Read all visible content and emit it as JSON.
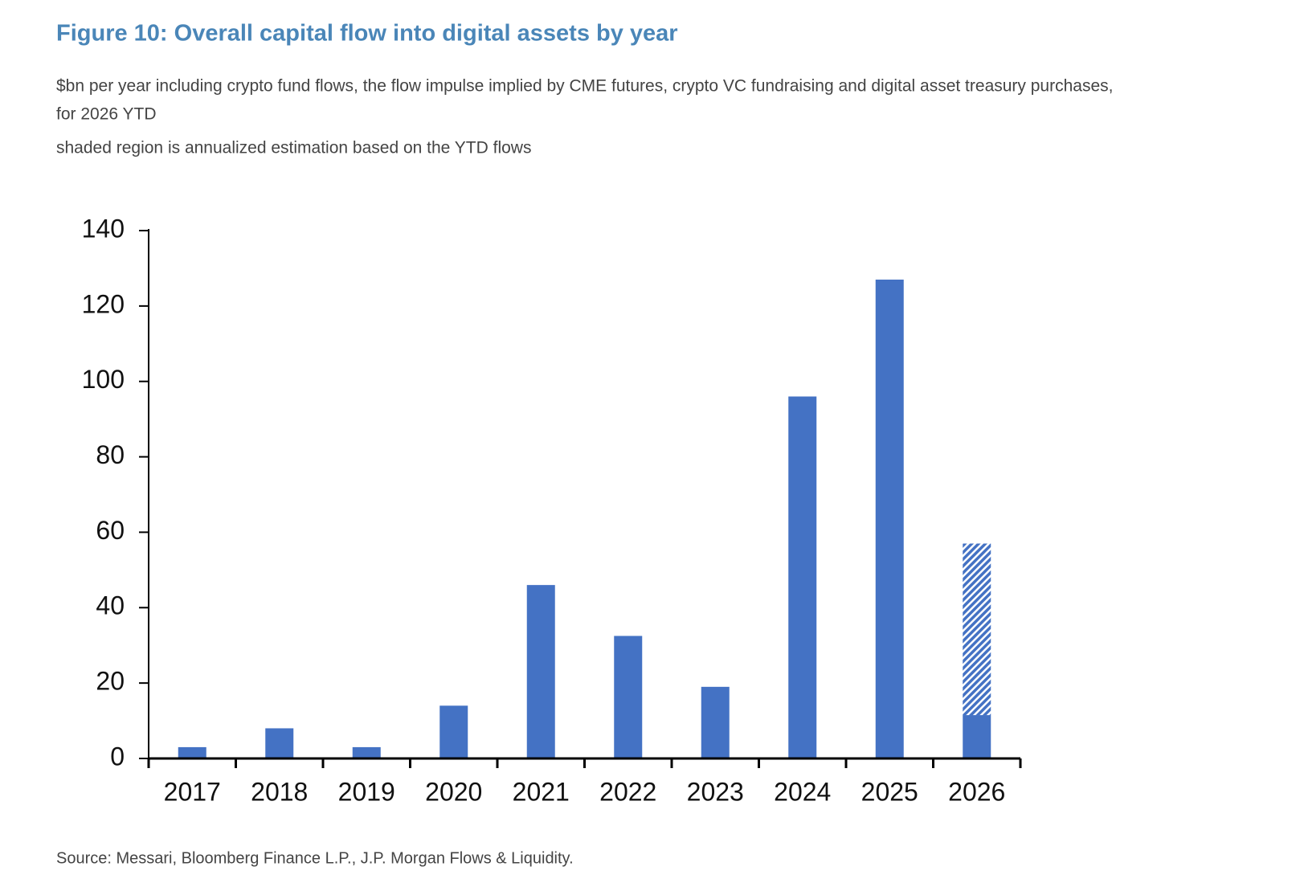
{
  "chart_data": {
    "type": "bar",
    "title": "Figure 10: Overall capital flow into digital assets by year",
    "subtitle": [
      "$bn per year including crypto fund flows, the flow impulse implied by CME futures, crypto VC fundraising and digital asset treasury purchases,",
      "for 2026 YTD",
      "shaded region is annualized estimation based on the YTD flows"
    ],
    "source": "Source: Messari, Bloomberg Finance L.P., J.P. Morgan Flows & Liquidity.",
    "categories": [
      "2017",
      "2018",
      "2019",
      "2020",
      "2021",
      "2022",
      "2023",
      "2024",
      "2025",
      "2026"
    ],
    "series": [
      {
        "color": "#4472c4",
        "values": [
          3,
          8,
          3,
          14,
          46,
          32.5,
          19,
          96,
          127,
          11.5
        ]
      },
      {
        "color": "#4472c4",
        "hatched": true,
        "values": [
          null,
          null,
          null,
          null,
          null,
          null,
          null,
          null,
          null,
          45.5
        ]
      }
    ],
    "stacked": true,
    "ylim": [
      0,
      140
    ],
    "yticks": [
      0,
      20,
      40,
      60,
      80,
      100,
      120,
      140
    ]
  }
}
